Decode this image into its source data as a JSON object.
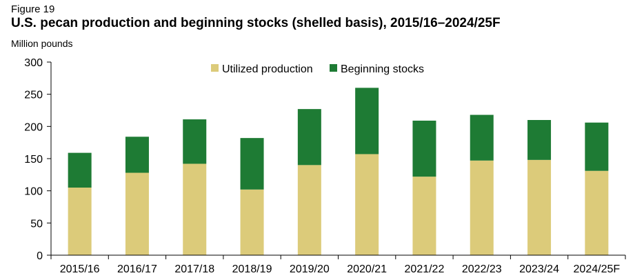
{
  "figure_label": "Figure 19",
  "chart_data": {
    "type": "bar",
    "stacked": true,
    "title": "U.S. pecan production and beginning stocks (shelled basis), 2015/16–2024/25F",
    "ylabel": "Million pounds",
    "xlabel": "",
    "ylim": [
      0,
      300
    ],
    "yticks": [
      0,
      50,
      100,
      150,
      200,
      250,
      300
    ],
    "grid": false,
    "legend_position": "top-center",
    "categories": [
      "2015/16",
      "2016/17",
      "2017/18",
      "2018/19",
      "2019/20",
      "2020/21",
      "2021/22",
      "2022/23",
      "2023/24",
      "2024/25F"
    ],
    "series": [
      {
        "name": "Utilized production",
        "color": "#dccb7a",
        "values": [
          105,
          128,
          142,
          102,
          140,
          157,
          122,
          147,
          148,
          131
        ]
      },
      {
        "name": "Beginning stocks",
        "color": "#1e7b34",
        "values": [
          54,
          56,
          69,
          80,
          87,
          103,
          87,
          71,
          62,
          75
        ]
      }
    ]
  }
}
